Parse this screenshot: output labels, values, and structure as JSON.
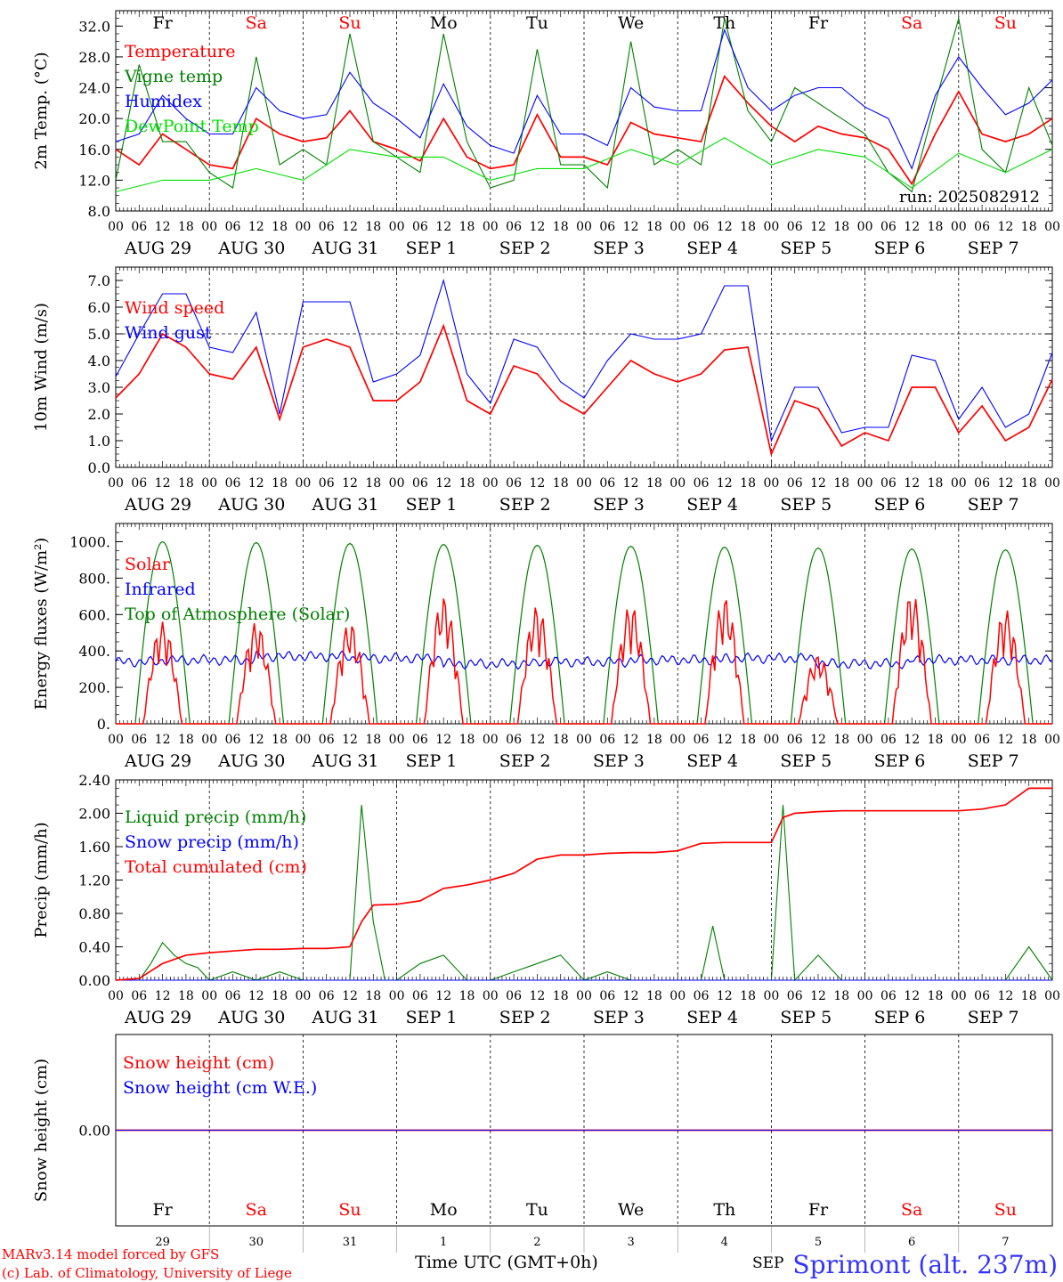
{
  "footer": {
    "model_line": "MARv3.14 model forced by GFS",
    "copyright": "(c) Lab. of Climatology, University of Liege",
    "xlabel": "Time UTC (GMT+0h)",
    "station": "Sprimont (alt. 237m)",
    "overlap_text": "SEP"
  },
  "colors": {
    "red": "#ff0000",
    "blue": "#0000ff",
    "green": "#008000",
    "lightgreen": "#00e000",
    "weekend": "#ff0000",
    "weekday": "#000000"
  },
  "chart_data": {
    "type": "line",
    "weekdays": [
      "Fr",
      "Sa",
      "Su",
      "Mo",
      "Tu",
      "We",
      "Th",
      "Fr",
      "Sa",
      "Su"
    ],
    "weekday_is_weekend": [
      false,
      true,
      true,
      false,
      false,
      false,
      false,
      false,
      true,
      true
    ],
    "hour_ticks": [
      "00",
      "06",
      "12",
      "18"
    ],
    "date_labels": [
      "AUG 29",
      "AUG 30",
      "AUG 31",
      "SEP  1",
      "SEP  2",
      "SEP  3",
      "SEP  4",
      "SEP  5",
      "SEP  6",
      "SEP  7"
    ],
    "day_numbers": [
      "29",
      "30",
      "31",
      "1",
      "2",
      "3",
      "4",
      "5",
      "6",
      "7"
    ],
    "panels": [
      {
        "id": "temp",
        "ylabel": "2m Temp. (°C)",
        "ylim": [
          8,
          34
        ],
        "yticks": [
          8.0,
          12.0,
          16.0,
          20.0,
          24.0,
          28.0,
          32.0
        ],
        "ytick_labels": [
          "8.0",
          "12.0",
          "16.0",
          "20.0",
          "24.0",
          "28.0",
          "32.0"
        ],
        "annotation": "run: 2025082912",
        "series": [
          {
            "name": "Temperature",
            "color": "#ff0000",
            "x": [
              0,
              6,
              12,
              18,
              24,
              30,
              36,
              42,
              48,
              54,
              60,
              66,
              72,
              78,
              84,
              90,
              96,
              102,
              108,
              114,
              120,
              126,
              132,
              138,
              144,
              150,
              156,
              162,
              168,
              174,
              180,
              186,
              192,
              198,
              204,
              210,
              216,
              222,
              228,
              234,
              240
            ],
            "values": [
              16,
              14,
              18,
              16,
              14,
              13.5,
              20,
              18,
              17,
              17.5,
              21,
              17,
              16,
              14.5,
              20,
              15,
              13.5,
              14,
              20.5,
              15,
              15,
              14,
              19.5,
              18,
              17.5,
              17,
              25.5,
              22,
              19,
              17,
              19,
              18,
              17.5,
              16,
              11.5,
              18,
              23.5,
              18,
              17,
              18,
              20
            ]
          },
          {
            "name": "Vigne temp",
            "color": "#008000",
            "x": [
              0,
              6,
              12,
              18,
              24,
              30,
              36,
              42,
              48,
              54,
              60,
              66,
              72,
              78,
              84,
              90,
              96,
              102,
              108,
              114,
              120,
              126,
              132,
              138,
              144,
              150,
              156,
              162,
              168,
              174,
              180,
              186,
              192,
              198,
              204,
              210,
              216,
              222,
              228,
              234,
              240
            ],
            "values": [
              12,
              27,
              17,
              17,
              13,
              11,
              28,
              14,
              16,
              14,
              31,
              17,
              15,
              13,
              31,
              17,
              11,
              12,
              29,
              14,
              14,
              11,
              30,
              14,
              16,
              14,
              33,
              21,
              17,
              24,
              22,
              20,
              18,
              13,
              10.5,
              22,
              33,
              16,
              13,
              24,
              16.5
            ]
          },
          {
            "name": "Humidex",
            "color": "#0000ff",
            "x": [
              0,
              6,
              12,
              18,
              24,
              30,
              36,
              42,
              48,
              54,
              60,
              66,
              72,
              78,
              84,
              90,
              96,
              102,
              108,
              114,
              120,
              126,
              132,
              138,
              144,
              150,
              156,
              162,
              168,
              174,
              180,
              186,
              192,
              198,
              204,
              210,
              216,
              222,
              228,
              234,
              240
            ],
            "values": [
              17,
              18,
              23,
              20,
              18,
              18,
              24,
              21,
              20,
              20.5,
              26,
              22,
              20,
              17.5,
              24.5,
              19,
              16.5,
              15.5,
              23,
              18,
              18,
              16.5,
              24,
              21.5,
              21,
              21,
              31.5,
              24,
              21,
              23,
              24,
              24,
              21.5,
              20,
              13.5,
              23,
              28,
              24,
              20.5,
              22,
              25
            ]
          },
          {
            "name": "DewPoint Temp",
            "color": "#00e000",
            "x": [
              0,
              12,
              24,
              36,
              48,
              60,
              72,
              84,
              96,
              108,
              120,
              132,
              144,
              156,
              168,
              180,
              192,
              204,
              216,
              228,
              240
            ],
            "values": [
              10.5,
              12,
              12,
              13.5,
              12,
              16,
              15,
              15,
              12,
              13.5,
              13.5,
              16,
              14,
              17.5,
              14,
              16,
              15,
              11,
              15.5,
              13,
              16
            ]
          }
        ]
      },
      {
        "id": "wind",
        "ylabel": "10m Wind (m/s)",
        "ylim": [
          0,
          7.5
        ],
        "yticks": [
          0.0,
          1.0,
          2.0,
          3.0,
          4.0,
          5.0,
          6.0,
          7.0
        ],
        "ytick_labels": [
          "0.0",
          "1.0",
          "2.0",
          "3.0",
          "4.0",
          "5.0",
          "6.0",
          "7.0"
        ],
        "reference_line": 5.0,
        "series": [
          {
            "name": "Wind speed",
            "color": "#ff0000",
            "x": [
              0,
              6,
              12,
              18,
              24,
              30,
              36,
              42,
              48,
              54,
              60,
              66,
              72,
              78,
              84,
              90,
              96,
              102,
              108,
              114,
              120,
              126,
              132,
              138,
              144,
              150,
              156,
              162,
              168,
              174,
              180,
              186,
              192,
              198,
              204,
              210,
              216,
              222,
              228,
              234,
              240
            ],
            "values": [
              2.6,
              3.5,
              5,
              4.5,
              3.5,
              3.3,
              4.5,
              1.8,
              4.5,
              4.8,
              4.5,
              2.5,
              2.5,
              3.2,
              5.3,
              2.5,
              2,
              3.8,
              3.5,
              2.5,
              2,
              3,
              4,
              3.5,
              3.2,
              3.5,
              4.4,
              4.5,
              0.5,
              2.5,
              2.2,
              0.8,
              1.3,
              1,
              3,
              3,
              1.3,
              2.3,
              1,
              1.5,
              3.3
            ]
          },
          {
            "name": "Wind gust",
            "color": "#0000ff",
            "x": [
              0,
              6,
              12,
              18,
              24,
              30,
              36,
              42,
              48,
              54,
              60,
              66,
              72,
              78,
              84,
              90,
              96,
              102,
              108,
              114,
              120,
              126,
              132,
              138,
              144,
              150,
              156,
              162,
              168,
              174,
              180,
              186,
              192,
              198,
              204,
              210,
              216,
              222,
              228,
              234,
              240
            ],
            "values": [
              3.4,
              5,
              6.5,
              6.5,
              4.5,
              4.3,
              5.8,
              2,
              6.2,
              6.2,
              6.2,
              3.2,
              3.5,
              4.2,
              7,
              3.5,
              2.4,
              4.8,
              4.5,
              3.2,
              2.6,
              4,
              5,
              4.8,
              4.8,
              5,
              6.8,
              6.8,
              1,
              3,
              3,
              1.3,
              1.5,
              1.5,
              4.2,
              4,
              1.8,
              3,
              1.5,
              2,
              4.3
            ]
          }
        ]
      },
      {
        "id": "flux",
        "ylabel": "Energy fluxes (W/m²)",
        "ylim": [
          0,
          1100
        ],
        "yticks": [
          0,
          200,
          400,
          600,
          800,
          1000
        ],
        "ytick_labels": [
          "0.",
          "200.",
          "400.",
          "600.",
          "800.",
          "1000."
        ],
        "daily_peaks": {
          "top_of_atmosphere_solar": [
            1000,
            995,
            990,
            985,
            980,
            975,
            970,
            965,
            960,
            955
          ],
          "solar": [
            560,
            560,
            560,
            700,
            650,
            660,
            700,
            380,
            720,
            630
          ],
          "infrared": [
            340,
            350,
            370,
            360,
            330,
            340,
            350,
            360,
            330,
            350
          ]
        },
        "series": [
          {
            "name": "Solar",
            "color": "#ff0000"
          },
          {
            "name": "Infrared",
            "color": "#0000ff"
          },
          {
            "name": "Top of Atmosphere (Solar)",
            "color": "#008000"
          }
        ]
      },
      {
        "id": "precip",
        "ylabel": "Precip (mm/h)",
        "ylim": [
          0,
          2.4
        ],
        "yticks": [
          0.0,
          0.4,
          0.8,
          1.2,
          1.6,
          2.0,
          2.4
        ],
        "ytick_labels": [
          "0.00",
          "0.40",
          "0.80",
          "1.20",
          "1.60",
          "2.00",
          "2.40"
        ],
        "series": [
          {
            "name": "Liquid precip (mm/h)",
            "color": "#008000",
            "x": [
              0,
              6,
              9,
              12,
              15,
              18,
              21,
              24,
              30,
              36,
              42,
              48,
              54,
              60,
              63,
              66,
              69,
              72,
              78,
              84,
              90,
              96,
              102,
              108,
              114,
              120,
              126,
              132,
              138,
              144,
              150,
              153,
              156,
              162,
              168,
              171,
              174,
              180,
              186,
              192,
              198,
              204,
              210,
              216,
              222,
              228,
              234,
              240
            ],
            "values": [
              0,
              0,
              0.2,
              0.45,
              0.3,
              0.2,
              0.15,
              0,
              0.1,
              0,
              0.1,
              0,
              0,
              0,
              2.1,
              0.7,
              0,
              0,
              0.2,
              0.3,
              0,
              0,
              0.1,
              0.2,
              0.3,
              0,
              0.1,
              0,
              0,
              0,
              0,
              0.65,
              0,
              0,
              0,
              2.1,
              0,
              0.3,
              0,
              0,
              0,
              0,
              0,
              0,
              0,
              0,
              0.4,
              0
            ]
          },
          {
            "name": "Snow precip (mm/h)",
            "color": "#0000ff",
            "x": [
              0,
              240
            ],
            "values": [
              0,
              0
            ]
          },
          {
            "name": "Total cumulated (cm)",
            "color": "#ff0000",
            "x": [
              0,
              6,
              12,
              18,
              24,
              30,
              36,
              42,
              48,
              54,
              60,
              63,
              66,
              72,
              78,
              84,
              90,
              96,
              102,
              108,
              114,
              120,
              126,
              132,
              138,
              144,
              150,
              156,
              162,
              168,
              171,
              174,
              180,
              186,
              192,
              198,
              204,
              210,
              216,
              222,
              228,
              234,
              240
            ],
            "values": [
              0,
              0.02,
              0.2,
              0.3,
              0.33,
              0.35,
              0.37,
              0.37,
              0.38,
              0.38,
              0.4,
              0.7,
              0.9,
              0.91,
              0.95,
              1.1,
              1.14,
              1.2,
              1.28,
              1.45,
              1.5,
              1.5,
              1.52,
              1.53,
              1.53,
              1.55,
              1.64,
              1.65,
              1.65,
              1.65,
              1.95,
              2.0,
              2.02,
              2.03,
              2.03,
              2.03,
              2.03,
              2.03,
              2.03,
              2.05,
              2.1,
              2.3,
              2.3
            ]
          }
        ]
      },
      {
        "id": "snow",
        "ylabel": "Snow height (cm)",
        "ylim": [
          -1,
          1
        ],
        "yticks": [
          0.0
        ],
        "ytick_labels": [
          "0.00"
        ],
        "series": [
          {
            "name": "Snow height (cm)",
            "color": "#ff0000",
            "x": [
              0,
              240
            ],
            "values": [
              0,
              0
            ]
          },
          {
            "name": "Snow height (cm W.E.)",
            "color": "#0000ff",
            "x": [
              0,
              240
            ],
            "values": [
              0,
              0
            ]
          }
        ]
      }
    ]
  }
}
